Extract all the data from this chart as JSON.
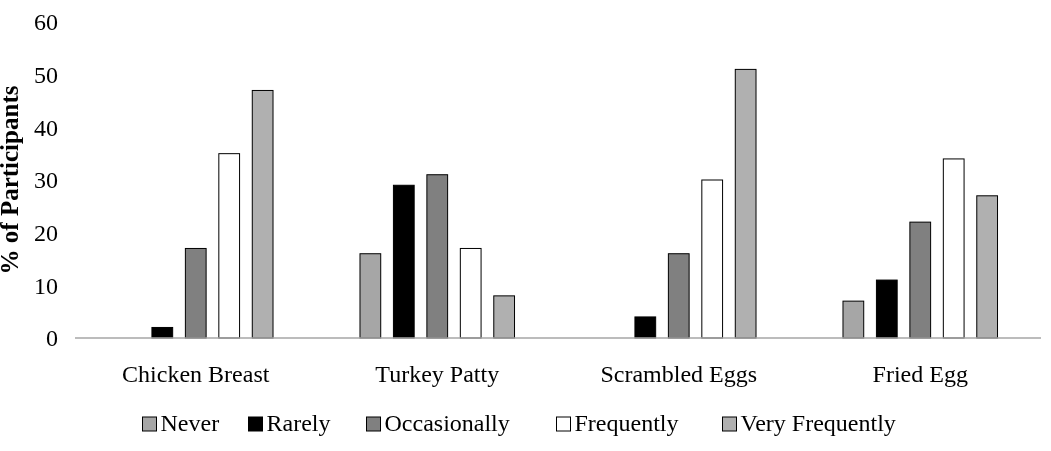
{
  "chart_data": {
    "type": "bar",
    "ylabel": "% of Participants",
    "categories": [
      "Chicken Breast",
      "Turkey Patty",
      "Scrambled Eggs",
      "Fried Egg"
    ],
    "series": [
      {
        "name": "Never",
        "color": "#a6a6a6",
        "values": [
          0,
          16,
          0,
          7
        ]
      },
      {
        "name": "Rarely",
        "color": "#000000",
        "values": [
          2,
          29,
          4,
          11
        ]
      },
      {
        "name": "Occasionally",
        "color": "#808080",
        "values": [
          17,
          31,
          16,
          22
        ]
      },
      {
        "name": "Frequently",
        "color": "#ffffff",
        "values": [
          35,
          17,
          30,
          34
        ]
      },
      {
        "name": "Very Frequently",
        "color": "#b0b0b0",
        "values": [
          47,
          8,
          51,
          27
        ]
      }
    ],
    "ylim": [
      0,
      60
    ],
    "yticks": [
      0,
      10,
      20,
      30,
      40,
      50,
      60
    ],
    "grid": false,
    "legend": "bottom"
  }
}
